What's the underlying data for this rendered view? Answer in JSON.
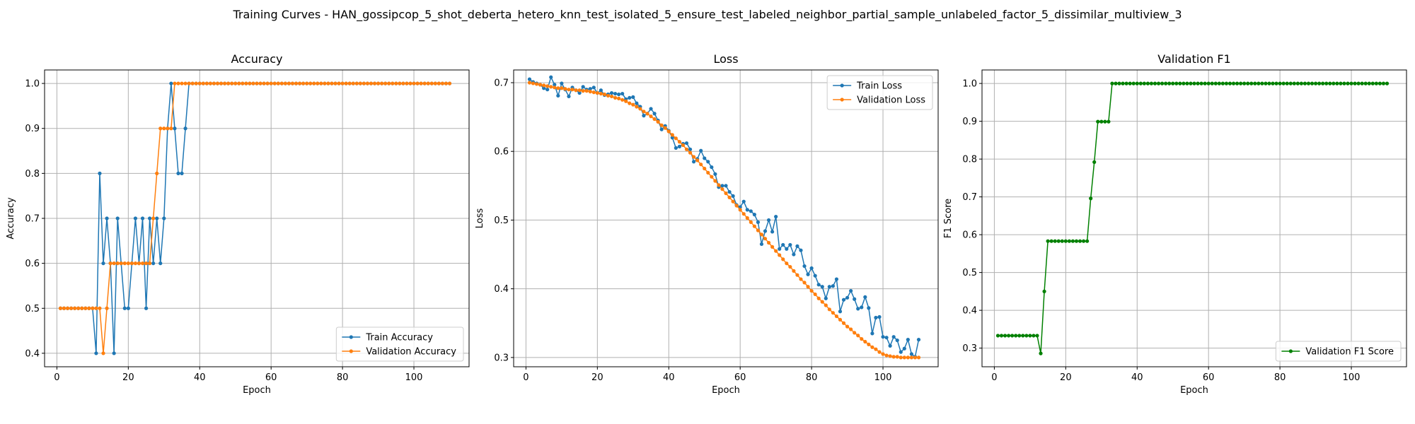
{
  "figure_title": "Training Curves - HAN_gossipcop_5_shot_deberta_hetero_knn_test_isolated_5_ensure_test_labeled_neighbor_partial_sample_unlabeled_factor_5_dissimilar_multiview_3",
  "chart_data": [
    {
      "type": "line",
      "title": "Accuracy",
      "xlabel": "Epoch",
      "ylabel": "Accuracy",
      "xlim": [
        -3.45,
        115.45
      ],
      "ylim": [
        0.37,
        1.03
      ],
      "xticks": [
        0,
        20,
        40,
        60,
        80,
        100
      ],
      "yticks": [
        0.4,
        0.5,
        0.6,
        0.7,
        0.8,
        0.9,
        1.0
      ],
      "ytick_labels": [
        "0.4",
        "0.5",
        "0.6",
        "0.7",
        "0.8",
        "0.9",
        "1.0"
      ],
      "grid": true,
      "legend_position": "lower-right",
      "series": [
        {
          "name": "Train Accuracy",
          "color": "#1f77b4",
          "x_start": 1,
          "values": [
            0.5,
            0.5,
            0.5,
            0.5,
            0.5,
            0.5,
            0.5,
            0.5,
            0.5,
            0.5,
            0.4,
            0.8,
            0.6,
            0.7,
            0.6,
            0.4,
            0.7,
            0.6,
            0.5,
            0.5,
            0.6,
            0.7,
            0.6,
            0.7,
            0.5,
            0.7,
            0.6,
            0.7,
            0.6,
            0.7,
            0.9,
            1.0,
            0.9,
            0.8,
            0.8,
            0.9,
            1.0,
            1.0,
            1.0,
            1.0,
            1.0,
            1.0,
            1.0,
            1.0,
            1.0,
            1.0,
            1.0,
            1.0,
            1.0,
            1.0,
            1.0,
            1.0,
            1.0,
            1.0,
            1.0,
            1.0,
            1.0,
            1.0,
            1.0,
            1.0,
            1.0,
            1.0,
            1.0,
            1.0,
            1.0,
            1.0,
            1.0,
            1.0,
            1.0,
            1.0,
            1.0,
            1.0,
            1.0,
            1.0,
            1.0,
            1.0,
            1.0,
            1.0,
            1.0,
            1.0,
            1.0,
            1.0,
            1.0,
            1.0,
            1.0,
            1.0,
            1.0,
            1.0,
            1.0,
            1.0,
            1.0,
            1.0,
            1.0,
            1.0,
            1.0,
            1.0,
            1.0,
            1.0,
            1.0,
            1.0,
            1.0,
            1.0,
            1.0,
            1.0,
            1.0,
            1.0,
            1.0,
            1.0,
            1.0,
            1.0
          ]
        },
        {
          "name": "Validation Accuracy",
          "color": "#ff7f0e",
          "x_start": 1,
          "values": [
            0.5,
            0.5,
            0.5,
            0.5,
            0.5,
            0.5,
            0.5,
            0.5,
            0.5,
            0.5,
            0.5,
            0.5,
            0.4,
            0.5,
            0.6,
            0.6,
            0.6,
            0.6,
            0.6,
            0.6,
            0.6,
            0.6,
            0.6,
            0.6,
            0.6,
            0.6,
            0.7,
            0.8,
            0.9,
            0.9,
            0.9,
            0.9,
            1.0,
            1.0,
            1.0,
            1.0,
            1.0,
            1.0,
            1.0,
            1.0,
            1.0,
            1.0,
            1.0,
            1.0,
            1.0,
            1.0,
            1.0,
            1.0,
            1.0,
            1.0,
            1.0,
            1.0,
            1.0,
            1.0,
            1.0,
            1.0,
            1.0,
            1.0,
            1.0,
            1.0,
            1.0,
            1.0,
            1.0,
            1.0,
            1.0,
            1.0,
            1.0,
            1.0,
            1.0,
            1.0,
            1.0,
            1.0,
            1.0,
            1.0,
            1.0,
            1.0,
            1.0,
            1.0,
            1.0,
            1.0,
            1.0,
            1.0,
            1.0,
            1.0,
            1.0,
            1.0,
            1.0,
            1.0,
            1.0,
            1.0,
            1.0,
            1.0,
            1.0,
            1.0,
            1.0,
            1.0,
            1.0,
            1.0,
            1.0,
            1.0,
            1.0,
            1.0,
            1.0,
            1.0,
            1.0,
            1.0,
            1.0,
            1.0,
            1.0,
            1.0
          ]
        }
      ]
    },
    {
      "type": "line",
      "title": "Loss",
      "xlabel": "Epoch",
      "ylabel": "Loss",
      "xlim": [
        -3.45,
        115.45
      ],
      "ylim": [
        0.2865,
        0.7185
      ],
      "xticks": [
        0,
        20,
        40,
        60,
        80,
        100
      ],
      "yticks": [
        0.3,
        0.4,
        0.5,
        0.6,
        0.7
      ],
      "ytick_labels": [
        "0.3",
        "0.4",
        "0.5",
        "0.6",
        "0.7"
      ],
      "grid": true,
      "legend_position": "upper-right",
      "series": [
        {
          "name": "Train Loss",
          "color": "#1f77b4",
          "x_start": 1,
          "values": [
            0.705,
            0.701,
            0.699,
            0.697,
            0.692,
            0.69,
            0.708,
            0.697,
            0.681,
            0.699,
            0.69,
            0.68,
            0.693,
            0.689,
            0.685,
            0.694,
            0.69,
            0.691,
            0.693,
            0.685,
            0.689,
            0.682,
            0.683,
            0.685,
            0.684,
            0.683,
            0.684,
            0.676,
            0.678,
            0.679,
            0.67,
            0.665,
            0.652,
            0.655,
            0.662,
            0.655,
            0.645,
            0.632,
            0.637,
            0.63,
            0.62,
            0.605,
            0.607,
            0.611,
            0.612,
            0.603,
            0.585,
            0.589,
            0.601,
            0.59,
            0.585,
            0.577,
            0.567,
            0.548,
            0.55,
            0.55,
            0.541,
            0.535,
            0.522,
            0.519,
            0.527,
            0.515,
            0.513,
            0.508,
            0.497,
            0.465,
            0.484,
            0.5,
            0.483,
            0.505,
            0.458,
            0.464,
            0.458,
            0.464,
            0.45,
            0.462,
            0.456,
            0.433,
            0.421,
            0.43,
            0.419,
            0.406,
            0.403,
            0.386,
            0.403,
            0.404,
            0.414,
            0.367,
            0.384,
            0.387,
            0.397,
            0.385,
            0.371,
            0.373,
            0.388,
            0.372,
            0.335,
            0.358,
            0.359,
            0.33,
            0.329,
            0.317,
            0.33,
            0.325,
            0.308,
            0.313,
            0.326,
            0.305,
            0.301,
            0.326
          ]
        },
        {
          "name": "Validation Loss",
          "color": "#ff7f0e",
          "x_start": 1,
          "values": [
            0.7,
            0.699,
            0.698,
            0.697,
            0.696,
            0.695,
            0.694,
            0.693,
            0.692,
            0.692,
            0.691,
            0.69,
            0.69,
            0.689,
            0.689,
            0.688,
            0.688,
            0.687,
            0.686,
            0.685,
            0.684,
            0.683,
            0.681,
            0.68,
            0.678,
            0.677,
            0.675,
            0.673,
            0.67,
            0.668,
            0.665,
            0.662,
            0.658,
            0.655,
            0.651,
            0.647,
            0.643,
            0.638,
            0.634,
            0.629,
            0.624,
            0.619,
            0.614,
            0.609,
            0.603,
            0.598,
            0.592,
            0.587,
            0.581,
            0.575,
            0.569,
            0.563,
            0.557,
            0.551,
            0.545,
            0.539,
            0.533,
            0.527,
            0.521,
            0.515,
            0.509,
            0.503,
            0.497,
            0.491,
            0.485,
            0.479,
            0.473,
            0.467,
            0.461,
            0.455,
            0.449,
            0.443,
            0.437,
            0.432,
            0.426,
            0.42,
            0.414,
            0.409,
            0.403,
            0.397,
            0.392,
            0.386,
            0.381,
            0.376,
            0.37,
            0.365,
            0.36,
            0.355,
            0.35,
            0.345,
            0.341,
            0.336,
            0.332,
            0.327,
            0.323,
            0.319,
            0.315,
            0.312,
            0.308,
            0.305,
            0.303,
            0.302,
            0.301,
            0.301,
            0.3,
            0.3,
            0.3,
            0.3,
            0.3,
            0.3
          ]
        }
      ]
    },
    {
      "type": "line",
      "title": "Validation F1",
      "xlabel": "Epoch",
      "ylabel": "F1 Score",
      "xlim": [
        -3.45,
        115.45
      ],
      "ylim": [
        0.2507,
        1.0357
      ],
      "xticks": [
        0,
        20,
        40,
        60,
        80,
        100
      ],
      "yticks": [
        0.3,
        0.4,
        0.5,
        0.6,
        0.7,
        0.8,
        0.9,
        1.0
      ],
      "ytick_labels": [
        "0.3",
        "0.4",
        "0.5",
        "0.6",
        "0.7",
        "0.8",
        "0.9",
        "1.0"
      ],
      "grid": true,
      "legend_position": "lower-right",
      "series": [
        {
          "name": "Validation F1 Score",
          "color": "#008000",
          "x_start": 1,
          "values": [
            0.333,
            0.333,
            0.333,
            0.333,
            0.333,
            0.333,
            0.333,
            0.333,
            0.333,
            0.333,
            0.333,
            0.333,
            0.286,
            0.45,
            0.583,
            0.583,
            0.583,
            0.583,
            0.583,
            0.583,
            0.583,
            0.583,
            0.583,
            0.583,
            0.583,
            0.583,
            0.696,
            0.792,
            0.899,
            0.899,
            0.899,
            0.899,
            1.0,
            1.0,
            1.0,
            1.0,
            1.0,
            1.0,
            1.0,
            1.0,
            1.0,
            1.0,
            1.0,
            1.0,
            1.0,
            1.0,
            1.0,
            1.0,
            1.0,
            1.0,
            1.0,
            1.0,
            1.0,
            1.0,
            1.0,
            1.0,
            1.0,
            1.0,
            1.0,
            1.0,
            1.0,
            1.0,
            1.0,
            1.0,
            1.0,
            1.0,
            1.0,
            1.0,
            1.0,
            1.0,
            1.0,
            1.0,
            1.0,
            1.0,
            1.0,
            1.0,
            1.0,
            1.0,
            1.0,
            1.0,
            1.0,
            1.0,
            1.0,
            1.0,
            1.0,
            1.0,
            1.0,
            1.0,
            1.0,
            1.0,
            1.0,
            1.0,
            1.0,
            1.0,
            1.0,
            1.0,
            1.0,
            1.0,
            1.0,
            1.0,
            1.0,
            1.0,
            1.0,
            1.0,
            1.0,
            1.0,
            1.0,
            1.0,
            1.0,
            1.0
          ]
        }
      ]
    }
  ]
}
